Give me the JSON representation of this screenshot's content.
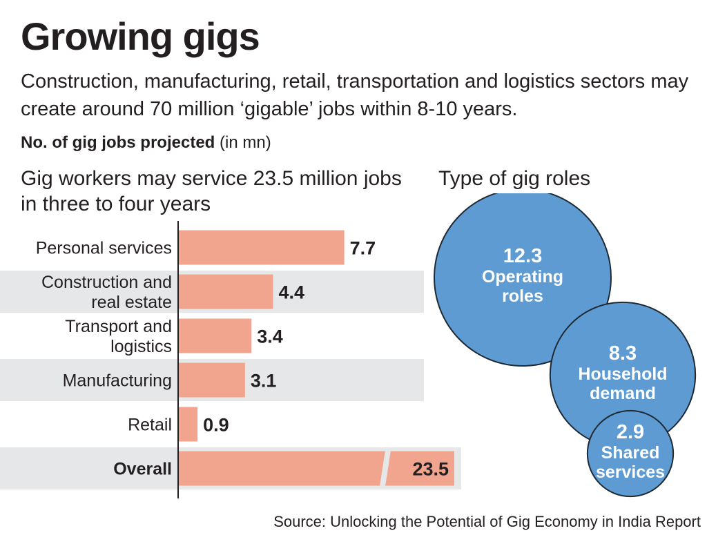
{
  "header": {
    "title": "Growing gigs",
    "subtitle": "Construction, manufacturing, retail, transportation and logistics sectors may create around 70 million ‘gigable’ jobs within 8-10 years.",
    "measure_bold": "No. of gig jobs projected",
    "measure_unit": "(in mn)"
  },
  "footer": {
    "source": "Source: Unlocking the Potential of Gig Economy in India Report"
  },
  "colors": {
    "bar": "#f2a58e",
    "band": "#e5e7e8",
    "bubble": "#5f9bd3",
    "bubble_edge": "#1e2a33"
  },
  "chart_data": [
    {
      "type": "bar",
      "orientation": "horizontal",
      "title": "Gig workers may service 23.5 million jobs in three to four years",
      "categories": [
        [
          "Personal services"
        ],
        [
          "Construction and",
          "real estate"
        ],
        [
          "Transport and",
          "logistics"
        ],
        [
          "Manufacturing"
        ],
        [
          "Retail"
        ],
        [
          "Overall"
        ]
      ],
      "values": [
        7.7,
        4.4,
        3.4,
        3.1,
        0.9,
        23.5
      ],
      "value_labels": [
        "7.7",
        "4.4",
        "3.4",
        "3.1",
        "0.9",
        "23.5"
      ],
      "highlight": "Overall",
      "axis_break_on": "Overall",
      "xlim": [
        0,
        8
      ]
    },
    {
      "type": "bubble",
      "title": "Type of gig roles",
      "items": [
        {
          "value": 12.3,
          "value_label": "12.3",
          "label": [
            "Operating",
            "roles"
          ]
        },
        {
          "value": 8.3,
          "value_label": "8.3",
          "label": [
            "Household",
            "demand"
          ]
        },
        {
          "value": 2.9,
          "value_label": "2.9",
          "label": [
            "Shared",
            "services"
          ]
        }
      ]
    }
  ]
}
